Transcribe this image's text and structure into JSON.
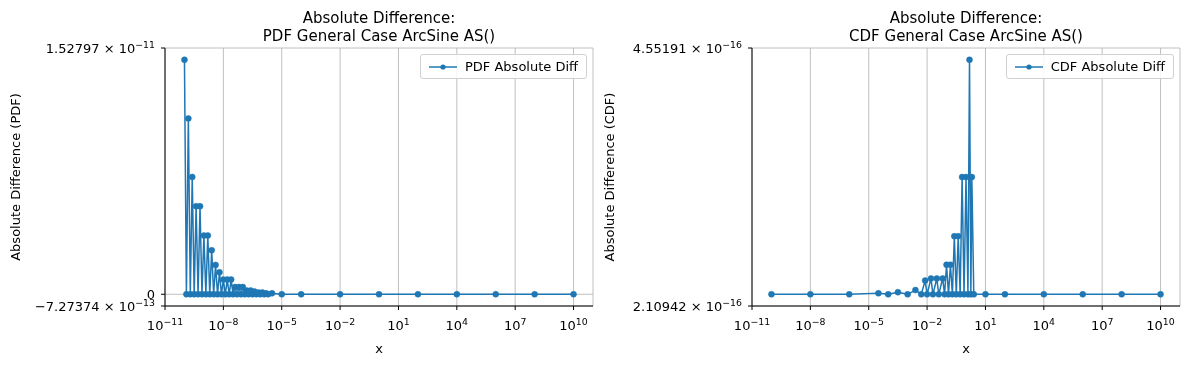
{
  "chart_data": [
    {
      "type": "line",
      "title": "Absolute Difference:\nPDF General Case ArcSine AS()",
      "xlabel": "x",
      "ylabel": "Absolute Difference (PDF)",
      "x": [
        1e-10,
        1.259e-10,
        1.585e-10,
        1.995e-10,
        2.512e-10,
        3.162e-10,
        3.981e-10,
        5.012e-10,
        6.31e-10,
        7.943e-10,
        1e-09,
        1.259e-09,
        1.585e-09,
        1.995e-09,
        2.512e-09,
        3.162e-09,
        3.981e-09,
        5.012e-09,
        6.31e-09,
        7.943e-09,
        1e-08,
        1.259e-08,
        1.585e-08,
        1.995e-08,
        2.512e-08,
        3.162e-08,
        3.981e-08,
        5.012e-08,
        6.31e-08,
        7.943e-08,
        1e-07,
        1.259e-07,
        1.585e-07,
        1.995e-07,
        2.512e-07,
        3.162e-07,
        3.981e-07,
        5.012e-07,
        6.31e-07,
        7.943e-07,
        1e-06,
        1.259e-06,
        1.585e-06,
        1.995e-06,
        3.162e-06,
        1e-05,
        0.0001,
        0.01,
        1,
        100,
        10000.0,
        1000000.0,
        100000000.0,
        10000000000.0
      ],
      "series": [
        {
          "name": "PDF Absolute Diff",
          "color": "#1f77b4",
          "values": [
            1.455e-11,
            0,
            1.091e-11,
            0,
            7.28e-12,
            0,
            5.46e-12,
            0,
            5.46e-12,
            0,
            3.64e-12,
            0,
            3.64e-12,
            0,
            2.73e-12,
            0,
            1.82e-12,
            0,
            1.36e-12,
            0,
            9.1e-13,
            0,
            9.1e-13,
            0,
            9.1e-13,
            0,
            4.5e-13,
            0,
            4.5e-13,
            0,
            4.5e-13,
            0,
            2.3e-13,
            0,
            2.3e-13,
            0,
            1.7e-13,
            0,
            1.1e-13,
            0,
            1.1e-13,
            0,
            6e-14,
            0,
            6e-14,
            0,
            0,
            0,
            0,
            0,
            0,
            0,
            0,
            0
          ]
        }
      ],
      "xlim": [
        1e-11,
        100000000000.0
      ],
      "xticks": [
        {
          "value": 1e-11,
          "label": "10$^{−11}$"
        },
        {
          "value": 1e-08,
          "label": "10$^{−8}$"
        },
        {
          "value": 1e-05,
          "label": "10$^{−5}$"
        },
        {
          "value": 0.01,
          "label": "10$^{−2}$"
        },
        {
          "value": 10,
          "label": "10$^{1}$"
        },
        {
          "value": 10000.0,
          "label": "10$^{4}$"
        },
        {
          "value": 10000000.0,
          "label": "10$^{7}$"
        },
        {
          "value": 10000000000.0,
          "label": "10$^{10}$"
        }
      ],
      "ylim": [
        -7.27374e-13,
        1.52797e-11
      ],
      "yticks": [
        {
          "value": -7.27374e-13,
          "label": "−7.27374 × 10$^{−13}$"
        },
        0,
        {
          "value": 1.52797e-11,
          "label": "1.52797 × 10$^{−11}$"
        }
      ],
      "log": "x",
      "grid": true,
      "legend": "top right",
      "marker": "circle"
    },
    {
      "type": "line",
      "title": "Absolute Difference:\nCDF General Case ArcSine AS()",
      "xlabel": "x",
      "ylabel": "Absolute Difference (CDF)",
      "x": [
        1e-10,
        1e-08,
        1e-06,
        3.162e-05,
        0.0001,
        0.0003162,
        0.001,
        0.002512,
        0.005012,
        0.007943,
        0.01,
        0.01585,
        0.01995,
        0.03162,
        0.03981,
        0.0631,
        0.07943,
        0.1,
        0.1259,
        0.1585,
        0.1995,
        0.2512,
        0.3162,
        0.3981,
        0.5012,
        0.631,
        0.7943,
        1,
        1.259,
        1.514,
        1.778,
        1.995,
        2.512,
        10,
        100,
        10000.0,
        1000000.0,
        100000000.0,
        10000000000.0
      ],
      "series": [
        {
          "name": "CDF Absolute Diff",
          "color": "#1f77b4",
          "values": [
            2.22e-16,
            2.22e-16,
            2.22e-16,
            2.23e-16,
            2.22e-16,
            2.24e-16,
            2.22e-16,
            2.26e-16,
            2.22e-16,
            2.35e-16,
            2.22e-16,
            2.37e-16,
            2.22e-16,
            2.37e-16,
            2.22e-16,
            2.37e-16,
            2.22e-16,
            2.5e-16,
            2.22e-16,
            2.5e-16,
            2.22e-16,
            2.77e-16,
            2.22e-16,
            2.77e-16,
            2.22e-16,
            3.33e-16,
            2.22e-16,
            3.33e-16,
            2.22e-16,
            4.44e-16,
            2.22e-16,
            3.33e-16,
            2.22e-16,
            2.22e-16,
            2.22e-16,
            2.22e-16,
            2.22e-16,
            2.22e-16,
            2.22e-16
          ]
        }
      ],
      "xlim": [
        1e-11,
        100000000000.0
      ],
      "xticks": [
        {
          "value": 1e-11,
          "label": "10$^{−11}$"
        },
        {
          "value": 1e-08,
          "label": "10$^{−8}$"
        },
        {
          "value": 1e-05,
          "label": "10$^{−5}$"
        },
        {
          "value": 0.01,
          "label": "10$^{−2}$"
        },
        {
          "value": 10,
          "label": "10$^{1}$"
        },
        {
          "value": 10000.0,
          "label": "10$^{4}$"
        },
        {
          "value": 10000000.0,
          "label": "10$^{7}$"
        },
        {
          "value": 10000000000.0,
          "label": "10$^{10}$"
        }
      ],
      "ylim": [
        2.10942e-16,
        4.55191e-16
      ],
      "yticks": [
        {
          "value": 2.10942e-16,
          "label": "2.10942 × 10$^{−16}$"
        },
        {
          "value": 4.55191e-16,
          "label": "4.55191 × 10$^{−16}$"
        }
      ],
      "log": "x",
      "grid": true,
      "legend": "top right",
      "marker": "circle"
    }
  ]
}
